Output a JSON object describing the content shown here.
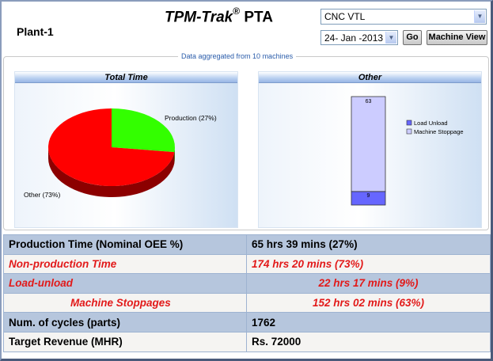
{
  "header": {
    "plant": "Plant-1",
    "title_brand": "TPM-Trak",
    "title_reg": "®",
    "title_suffix": "PTA",
    "machine_value": "CNC VTL",
    "date_value": "24- Jan -2013",
    "go_label": "Go",
    "machine_view_label": "Machine View"
  },
  "aggregate_label": "Data aggregated from 10 machines",
  "panels": {
    "left_title": "Total Time",
    "right_title": "Other"
  },
  "chart_data": [
    {
      "type": "pie",
      "title": "Total Time",
      "labels": [
        "Production (27%)",
        "Other (73%)"
      ],
      "values": [
        27,
        73
      ],
      "colors": [
        "#33ff00",
        "#ff0000"
      ]
    },
    {
      "type": "bar",
      "title": "Other",
      "stacked": true,
      "categories": [
        ""
      ],
      "series": [
        {
          "name": "Load Unload",
          "values": [
            9
          ],
          "color": "#6666ff"
        },
        {
          "name": "Machine Stoppage",
          "values": [
            63
          ],
          "color": "#ccccff"
        }
      ],
      "legend": "right"
    }
  ],
  "table": {
    "rows": [
      {
        "label": "Production Time (Nominal OEE %)",
        "value": "65 hrs 39 mins (27%)"
      },
      {
        "label": "Non-production Time",
        "value": "174 hrs 20 mins (73%)"
      },
      {
        "label": "Load-unload",
        "value": "22 hrs 17 mins (9%)"
      },
      {
        "label": "Machine Stoppages",
        "value": "152 hrs 02 mins (63%)"
      },
      {
        "label": "Num. of cycles (parts)",
        "value": "1762"
      },
      {
        "label": "Target Revenue (MHR)",
        "value": "Rs. 72000"
      }
    ]
  }
}
